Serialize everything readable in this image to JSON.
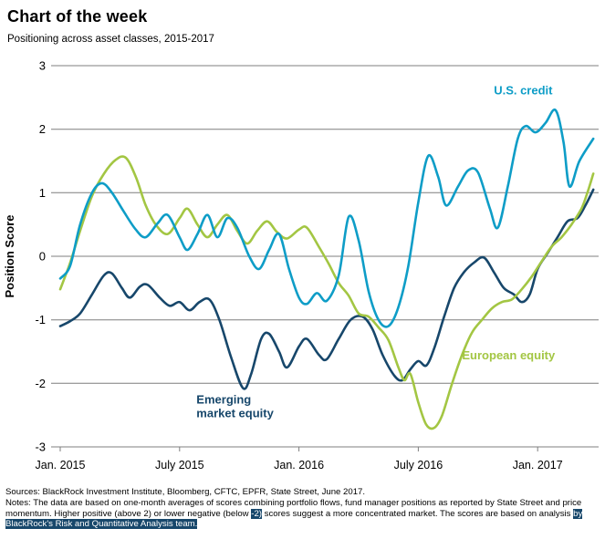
{
  "header": {
    "title": "Chart of the week",
    "subtitle": "Positioning across asset classes, 2015-2017"
  },
  "chart_data": {
    "type": "line",
    "title": "Chart of the week",
    "subtitle": "Positioning across asset classes, 2015-2017",
    "ylabel": "Position Score",
    "ylim": [
      -3,
      3
    ],
    "yticks": [
      3,
      2,
      1,
      0,
      -1,
      -2,
      -3
    ],
    "grid": "horizontal",
    "grid_color": "#7f7f7f",
    "x_unit": "months since Jan 2015",
    "xlim": [
      0,
      27
    ],
    "xticks": [
      {
        "x": 0,
        "label": "Jan. 2015"
      },
      {
        "x": 6,
        "label": "July 2015"
      },
      {
        "x": 12,
        "label": "Jan. 2016"
      },
      {
        "x": 18,
        "label": "July 2016"
      },
      {
        "x": 24,
        "label": "Jan. 2017"
      }
    ],
    "series": [
      {
        "name": "Emerging market equity",
        "color": "#17476b",
        "points": [
          [
            0,
            -1.1
          ],
          [
            0.5,
            -1.02
          ],
          [
            1,
            -0.9
          ],
          [
            1.6,
            -0.6
          ],
          [
            2.2,
            -0.3
          ],
          [
            2.6,
            -0.27
          ],
          [
            3.1,
            -0.5
          ],
          [
            3.5,
            -0.65
          ],
          [
            4,
            -0.48
          ],
          [
            4.4,
            -0.45
          ],
          [
            5,
            -0.65
          ],
          [
            5.5,
            -0.78
          ],
          [
            6,
            -0.72
          ],
          [
            6.5,
            -0.85
          ],
          [
            7,
            -0.72
          ],
          [
            7.5,
            -0.68
          ],
          [
            8,
            -1.0
          ],
          [
            8.6,
            -1.6
          ],
          [
            9.2,
            -2.08
          ],
          [
            9.6,
            -1.85
          ],
          [
            10.1,
            -1.3
          ],
          [
            10.5,
            -1.22
          ],
          [
            11,
            -1.5
          ],
          [
            11.4,
            -1.75
          ],
          [
            12,
            -1.42
          ],
          [
            12.4,
            -1.3
          ],
          [
            13,
            -1.55
          ],
          [
            13.4,
            -1.62
          ],
          [
            14,
            -1.3
          ],
          [
            14.6,
            -1.0
          ],
          [
            15.2,
            -0.95
          ],
          [
            15.7,
            -1.15
          ],
          [
            16.2,
            -1.55
          ],
          [
            16.8,
            -1.88
          ],
          [
            17.2,
            -1.95
          ],
          [
            17.6,
            -1.78
          ],
          [
            18,
            -1.65
          ],
          [
            18.4,
            -1.72
          ],
          [
            18.8,
            -1.45
          ],
          [
            19.3,
            -0.95
          ],
          [
            19.8,
            -0.5
          ],
          [
            20.3,
            -0.25
          ],
          [
            20.8,
            -0.1
          ],
          [
            21.3,
            -0.02
          ],
          [
            21.8,
            -0.25
          ],
          [
            22.3,
            -0.5
          ],
          [
            22.8,
            -0.6
          ],
          [
            23.2,
            -0.72
          ],
          [
            23.6,
            -0.6
          ],
          [
            24,
            -0.2
          ],
          [
            24.5,
            0.05
          ],
          [
            25,
            0.3
          ],
          [
            25.5,
            0.55
          ],
          [
            26,
            0.6
          ],
          [
            26.4,
            0.8
          ],
          [
            26.8,
            1.05
          ]
        ]
      },
      {
        "name": "European equity",
        "color": "#a3c643",
        "points": [
          [
            0,
            -0.52
          ],
          [
            0.5,
            -0.1
          ],
          [
            1,
            0.4
          ],
          [
            1.6,
            0.95
          ],
          [
            2.2,
            1.3
          ],
          [
            2.8,
            1.52
          ],
          [
            3.3,
            1.55
          ],
          [
            3.8,
            1.25
          ],
          [
            4.3,
            0.8
          ],
          [
            4.8,
            0.5
          ],
          [
            5.4,
            0.35
          ],
          [
            6,
            0.6
          ],
          [
            6.4,
            0.75
          ],
          [
            6.9,
            0.5
          ],
          [
            7.4,
            0.3
          ],
          [
            7.9,
            0.5
          ],
          [
            8.4,
            0.65
          ],
          [
            8.9,
            0.4
          ],
          [
            9.4,
            0.2
          ],
          [
            9.9,
            0.4
          ],
          [
            10.4,
            0.55
          ],
          [
            10.9,
            0.38
          ],
          [
            11.4,
            0.28
          ],
          [
            12,
            0.42
          ],
          [
            12.4,
            0.45
          ],
          [
            13,
            0.15
          ],
          [
            13.5,
            -0.12
          ],
          [
            14,
            -0.42
          ],
          [
            14.5,
            -0.62
          ],
          [
            15,
            -0.9
          ],
          [
            15.5,
            -0.95
          ],
          [
            16,
            -1.12
          ],
          [
            16.5,
            -1.32
          ],
          [
            17,
            -1.75
          ],
          [
            17.3,
            -1.95
          ],
          [
            17.6,
            -1.85
          ],
          [
            18,
            -2.3
          ],
          [
            18.4,
            -2.65
          ],
          [
            18.8,
            -2.7
          ],
          [
            19.2,
            -2.5
          ],
          [
            19.7,
            -2.0
          ],
          [
            20.2,
            -1.55
          ],
          [
            20.7,
            -1.2
          ],
          [
            21.2,
            -1.0
          ],
          [
            21.7,
            -0.82
          ],
          [
            22.2,
            -0.72
          ],
          [
            22.7,
            -0.68
          ],
          [
            23.2,
            -0.52
          ],
          [
            23.7,
            -0.32
          ],
          [
            24.2,
            -0.08
          ],
          [
            24.7,
            0.15
          ],
          [
            25.2,
            0.3
          ],
          [
            25.7,
            0.5
          ],
          [
            26.2,
            0.75
          ],
          [
            26.5,
            1.0
          ],
          [
            26.8,
            1.3
          ]
        ]
      },
      {
        "name": "U.S. credit",
        "color": "#0e9dc7",
        "points": [
          [
            0,
            -0.35
          ],
          [
            0.5,
            -0.15
          ],
          [
            1,
            0.5
          ],
          [
            1.6,
            1.0
          ],
          [
            2.1,
            1.15
          ],
          [
            2.6,
            1.0
          ],
          [
            3.2,
            0.7
          ],
          [
            3.8,
            0.42
          ],
          [
            4.3,
            0.3
          ],
          [
            4.9,
            0.52
          ],
          [
            5.4,
            0.65
          ],
          [
            6,
            0.3
          ],
          [
            6.4,
            0.1
          ],
          [
            6.9,
            0.35
          ],
          [
            7.4,
            0.65
          ],
          [
            7.9,
            0.3
          ],
          [
            8.4,
            0.6
          ],
          [
            8.9,
            0.45
          ],
          [
            9.5,
            0.0
          ],
          [
            10,
            -0.2
          ],
          [
            10.5,
            0.1
          ],
          [
            11,
            0.35
          ],
          [
            11.5,
            -0.2
          ],
          [
            12,
            -0.65
          ],
          [
            12.4,
            -0.75
          ],
          [
            12.9,
            -0.58
          ],
          [
            13.4,
            -0.7
          ],
          [
            14,
            -0.3
          ],
          [
            14.5,
            0.62
          ],
          [
            15,
            0.25
          ],
          [
            15.5,
            -0.55
          ],
          [
            16,
            -1.0
          ],
          [
            16.5,
            -1.1
          ],
          [
            17,
            -0.8
          ],
          [
            17.5,
            -0.15
          ],
          [
            18,
            0.85
          ],
          [
            18.5,
            1.58
          ],
          [
            19,
            1.25
          ],
          [
            19.4,
            0.8
          ],
          [
            20,
            1.1
          ],
          [
            20.5,
            1.35
          ],
          [
            21,
            1.32
          ],
          [
            21.6,
            0.75
          ],
          [
            22,
            0.45
          ],
          [
            22.5,
            1.1
          ],
          [
            23,
            1.85
          ],
          [
            23.4,
            2.05
          ],
          [
            23.9,
            1.95
          ],
          [
            24.4,
            2.1
          ],
          [
            24.9,
            2.3
          ],
          [
            25.3,
            1.8
          ],
          [
            25.6,
            1.1
          ],
          [
            26.1,
            1.5
          ],
          [
            26.8,
            1.85
          ]
        ]
      }
    ],
    "annotations": [
      {
        "lines": [
          "U.S. credit"
        ],
        "color": "#0e9dc7",
        "x": 21.8,
        "y": 2.55,
        "anchor": "start"
      },
      {
        "lines": [
          "European equity"
        ],
        "color": "#a3c643",
        "x": 20.2,
        "y": -1.62,
        "anchor": "start"
      },
      {
        "lines": [
          "Emerging",
          "market equity"
        ],
        "color": "#17476b",
        "x": 6.85,
        "y": -2.32,
        "anchor": "start"
      }
    ],
    "legend_position": "inline-labels"
  },
  "footer": {
    "sources": "Sources: BlackRock Investment Institute, Bloomberg, CFTC, EPFR, State Street, June 2017.",
    "notes_segments": [
      {
        "text": "Notes: The data are based on one-month averages of scores combining portfolio flows, fund manager positions as reported by State Street and price momentum. Higher positive (above 2) or lower negative (below ",
        "highlight": false
      },
      {
        "text": "-2)",
        "highlight": true
      },
      {
        "text": " scores suggest a more concentrated market. The scores are based on analysis ",
        "highlight": false
      },
      {
        "text": "by BlackRock's Risk and Quantitative Analysis team.",
        "highlight": true
      }
    ],
    "highlight_color": "#17476b"
  }
}
